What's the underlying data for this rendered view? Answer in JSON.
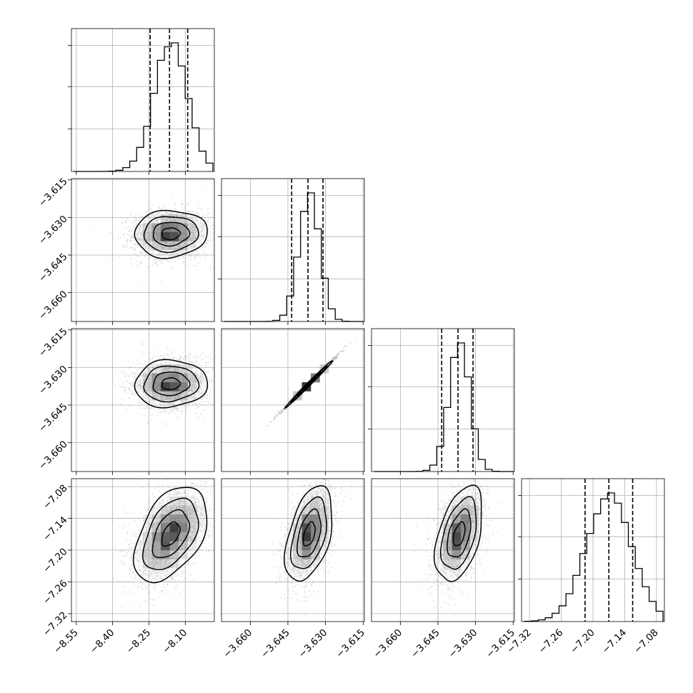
{
  "chart_data": {
    "type": "corner",
    "dimensions": 4,
    "parameters": [
      {
        "index": 0,
        "median": -8.16,
        "sigma": 0.075,
        "skew": -0.6,
        "range": [
          -8.57,
          -7.98
        ],
        "ticks": [
          -8.55,
          -8.4,
          -8.25,
          -8.1
        ],
        "tick_labels": [
          "−8.55",
          "−8.40",
          "−8.25",
          "−8.10"
        ],
        "quantiles": [
          -8.245,
          -8.165,
          -8.09
        ]
      },
      {
        "index": 1,
        "median": -3.6365,
        "sigma": 0.0047,
        "skew": -0.7,
        "range": [
          -3.6715,
          -3.6145
        ],
        "ticks": [
          -3.615,
          -3.63,
          -3.645,
          -3.66
        ],
        "tick_labels": [
          "−3.615",
          "−3.630",
          "−3.645",
          "−3.660"
        ],
        "quantiles": [
          -3.6435,
          -3.637,
          -3.631
        ]
      },
      {
        "index": 2,
        "median": -3.6365,
        "sigma": 0.0047,
        "skew": -0.7,
        "range": [
          -3.6715,
          -3.6145
        ],
        "ticks": [
          -3.615,
          -3.63,
          -3.645,
          -3.66
        ],
        "tick_labels": [
          "−3.615",
          "−3.630",
          "−3.645",
          "−3.660"
        ],
        "quantiles": [
          -3.6435,
          -3.637,
          -3.631
        ]
      },
      {
        "index": 3,
        "median": -7.17,
        "sigma": 0.045,
        "skew": -0.4,
        "range": [
          -7.335,
          -7.065
        ],
        "ticks": [
          -7.08,
          -7.14,
          -7.2,
          -7.26,
          -7.32
        ],
        "tick_labels": [
          "−7.08",
          "−7.14",
          "−7.20",
          "−7.26",
          "−7.32"
        ],
        "quantiles": [
          -7.215,
          -7.17,
          -7.125
        ]
      }
    ],
    "x_bottom_ticks": [
      {
        "param": 0,
        "ticks": [
          -8.55,
          -8.4,
          -8.25,
          -8.1
        ],
        "labels": [
          "−8.55",
          "−8.40",
          "−8.25",
          "−8.10"
        ]
      },
      {
        "param": 1,
        "ticks": [
          -3.66,
          -3.645,
          -3.63,
          -3.615
        ],
        "labels": [
          "−3.660",
          "−3.645",
          "−3.630",
          "−3.615"
        ]
      },
      {
        "param": 2,
        "ticks": [
          -3.66,
          -3.645,
          -3.63,
          -3.615
        ],
        "labels": [
          "−3.660",
          "−3.645",
          "−3.630",
          "−3.615"
        ]
      },
      {
        "param": 3,
        "ticks": [
          -7.32,
          -7.26,
          -7.2,
          -7.14,
          -7.08
        ],
        "labels": [
          "−7.32",
          "−7.26",
          "−7.20",
          "−7.14",
          "−7.08"
        ]
      }
    ],
    "y_left_ticks": [
      {
        "row": 1,
        "param": 1,
        "ticks": [
          -3.615,
          -3.63,
          -3.645,
          -3.66
        ],
        "labels": [
          "−3.615",
          "−3.630",
          "−3.645",
          "−3.660"
        ]
      },
      {
        "row": 2,
        "param": 2,
        "ticks": [
          -3.615,
          -3.63,
          -3.645,
          -3.66
        ],
        "labels": [
          "−3.615",
          "−3.630",
          "−3.645",
          "−3.660"
        ]
      },
      {
        "row": 3,
        "param": 3,
        "ticks": [
          -7.08,
          -7.14,
          -7.2,
          -7.26,
          -7.32
        ],
        "labels": [
          "−7.08",
          "−7.14",
          "−7.20",
          "−7.26",
          "−7.32"
        ]
      }
    ],
    "correlations": [
      {
        "row": 1,
        "col": 0,
        "rho": 0.05
      },
      {
        "row": 2,
        "col": 0,
        "rho": 0.05
      },
      {
        "row": 2,
        "col": 1,
        "rho": 0.995
      },
      {
        "row": 3,
        "col": 0,
        "rho": 0.45
      },
      {
        "row": 3,
        "col": 1,
        "rho": 0.45
      },
      {
        "row": 3,
        "col": 2,
        "rho": 0.45
      }
    ],
    "contour_levels_sigma": [
      0.5,
      1.0,
      1.5,
      2.0
    ],
    "quantile_levels": [
      0.16,
      0.5,
      0.84
    ],
    "grid": true,
    "colors": {
      "frame": "#000000",
      "grid": "#b0b0b0",
      "points": "#a0a0a0",
      "density_dark": "#000000",
      "density_light": "#ffffff"
    }
  }
}
